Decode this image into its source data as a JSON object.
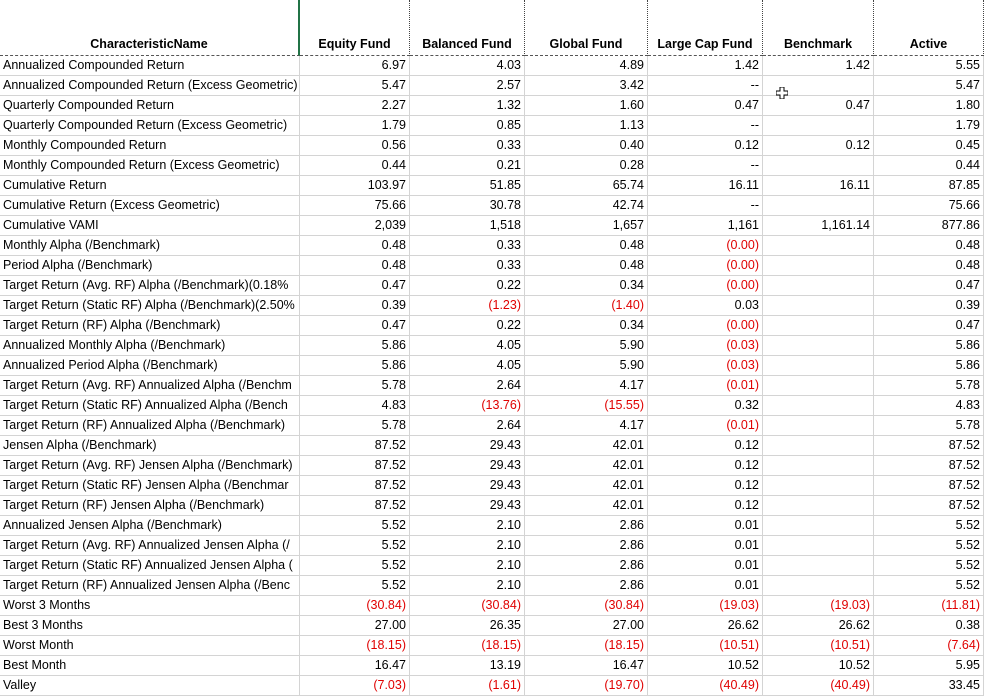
{
  "table": {
    "header": [
      "CharacteristicName",
      "Equity Fund",
      "Balanced Fund",
      "Global Fund",
      "Large Cap Fund",
      "Benchmark",
      "Active"
    ],
    "rows": [
      [
        "Annualized Compounded Return",
        "6.97",
        "4.03",
        "4.89",
        "1.42",
        "1.42",
        "5.55"
      ],
      [
        "Annualized Compounded Return (Excess Geometric)",
        "5.47",
        "2.57",
        "3.42",
        "--",
        null,
        "5.47"
      ],
      [
        "Quarterly Compounded Return",
        "2.27",
        "1.32",
        "1.60",
        "0.47",
        "0.47",
        "1.80"
      ],
      [
        "Quarterly Compounded Return (Excess Geometric)",
        "1.79",
        "0.85",
        "1.13",
        "--",
        null,
        "1.79"
      ],
      [
        "Monthly Compounded Return",
        "0.56",
        "0.33",
        "0.40",
        "0.12",
        "0.12",
        "0.45"
      ],
      [
        "Monthly Compounded Return (Excess Geometric)",
        "0.44",
        "0.21",
        "0.28",
        "--",
        null,
        "0.44"
      ],
      [
        "Cumulative Return",
        "103.97",
        "51.85",
        "65.74",
        "16.11",
        "16.11",
        "87.85"
      ],
      [
        "Cumulative Return (Excess Geometric)",
        "75.66",
        "30.78",
        "42.74",
        "--",
        null,
        "75.66"
      ],
      [
        "Cumulative VAMI",
        "2,039",
        "1,518",
        "1,657",
        "1,161",
        "1,161.14",
        "877.86"
      ],
      [
        "Monthly Alpha (/Benchmark)",
        "0.48",
        "0.33",
        "0.48",
        "(0.00)",
        null,
        "0.48"
      ],
      [
        "Period Alpha (/Benchmark)",
        "0.48",
        "0.33",
        "0.48",
        "(0.00)",
        null,
        "0.48"
      ],
      [
        "Target Return (Avg. RF) Alpha (/Benchmark)(0.18%",
        "0.47",
        "0.22",
        "0.34",
        "(0.00)",
        null,
        "0.47"
      ],
      [
        "Target Return (Static RF) Alpha (/Benchmark)(2.50%",
        "0.39",
        "(1.23)",
        "(1.40)",
        "0.03",
        null,
        "0.39"
      ],
      [
        "Target Return (RF) Alpha (/Benchmark)",
        "0.47",
        "0.22",
        "0.34",
        "(0.00)",
        null,
        "0.47"
      ],
      [
        "Annualized Monthly Alpha (/Benchmark)",
        "5.86",
        "4.05",
        "5.90",
        "(0.03)",
        null,
        "5.86"
      ],
      [
        "Annualized Period Alpha (/Benchmark)",
        "5.86",
        "4.05",
        "5.90",
        "(0.03)",
        null,
        "5.86"
      ],
      [
        "Target Return (Avg. RF) Annualized Alpha (/Benchm",
        "5.78",
        "2.64",
        "4.17",
        "(0.01)",
        null,
        "5.78"
      ],
      [
        "Target Return (Static RF) Annualized Alpha (/Bench",
        "4.83",
        "(13.76)",
        "(15.55)",
        "0.32",
        null,
        "4.83"
      ],
      [
        "Target Return (RF) Annualized Alpha (/Benchmark)",
        "5.78",
        "2.64",
        "4.17",
        "(0.01)",
        null,
        "5.78"
      ],
      [
        "Jensen Alpha (/Benchmark)",
        "87.52",
        "29.43",
        "42.01",
        "0.12",
        null,
        "87.52"
      ],
      [
        "Target Return (Avg. RF) Jensen Alpha (/Benchmark)",
        "87.52",
        "29.43",
        "42.01",
        "0.12",
        null,
        "87.52"
      ],
      [
        "Target Return (Static RF) Jensen Alpha (/Benchmar",
        "87.52",
        "29.43",
        "42.01",
        "0.12",
        null,
        "87.52"
      ],
      [
        "Target Return (RF) Jensen Alpha (/Benchmark)",
        "87.52",
        "29.43",
        "42.01",
        "0.12",
        null,
        "87.52"
      ],
      [
        "Annualized Jensen Alpha (/Benchmark)",
        "5.52",
        "2.10",
        "2.86",
        "0.01",
        null,
        "5.52"
      ],
      [
        "Target Return (Avg. RF) Annualized Jensen Alpha (/",
        "5.52",
        "2.10",
        "2.86",
        "0.01",
        null,
        "5.52"
      ],
      [
        "Target Return (Static RF) Annualized Jensen Alpha (",
        "5.52",
        "2.10",
        "2.86",
        "0.01",
        null,
        "5.52"
      ],
      [
        "Target Return (RF) Annualized Jensen Alpha (/Benc",
        "5.52",
        "2.10",
        "2.86",
        "0.01",
        null,
        "5.52"
      ],
      [
        "Worst 3 Months",
        "(30.84)",
        "(30.84)",
        "(30.84)",
        "(19.03)",
        "(19.03)",
        "(11.81)"
      ],
      [
        "Best 3 Months",
        "27.00",
        "26.35",
        "27.00",
        "26.62",
        "26.62",
        "0.38"
      ],
      [
        "Worst Month",
        "(18.15)",
        "(18.15)",
        "(18.15)",
        "(10.51)",
        "(10.51)",
        "(7.64)"
      ],
      [
        "Best Month",
        "16.47",
        "13.19",
        "16.47",
        "10.52",
        "10.52",
        "5.95"
      ],
      [
        "Valley",
        "(7.03)",
        "(1.61)",
        "(19.70)",
        "(40.49)",
        "(40.49)",
        "33.45"
      ]
    ]
  }
}
